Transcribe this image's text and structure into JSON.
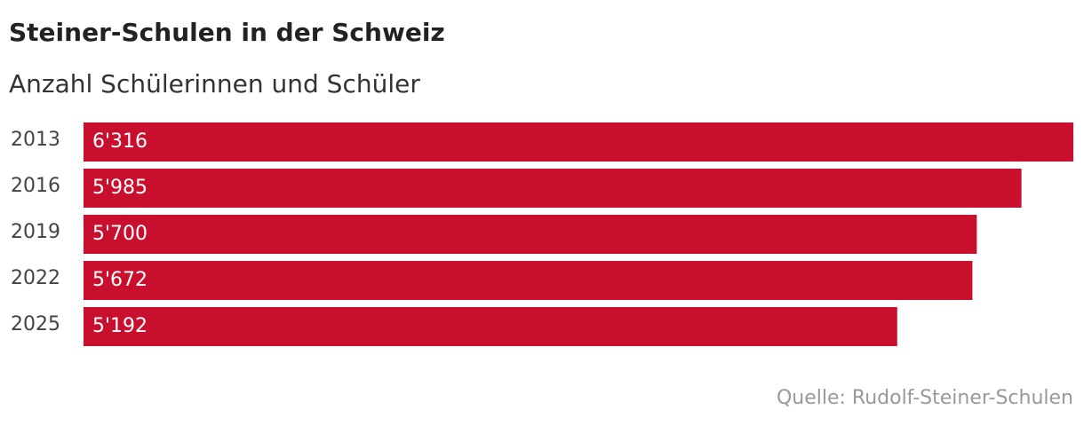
{
  "chart_data": {
    "type": "hbar",
    "title": "Steiner-Schulen in der Schweiz",
    "subtitle": "Anzahl Schülerinnen und Schüler",
    "categories": [
      "2013",
      "2016",
      "2019",
      "2022",
      "2025"
    ],
    "values": [
      6316,
      5985,
      5700,
      5672,
      5192
    ],
    "value_labels": [
      "6'316",
      "5'985",
      "5'700",
      "5'672",
      "5'192"
    ],
    "color": "#c8102e",
    "source": "Quelle: Rudolf-Steiner-Schulen"
  }
}
